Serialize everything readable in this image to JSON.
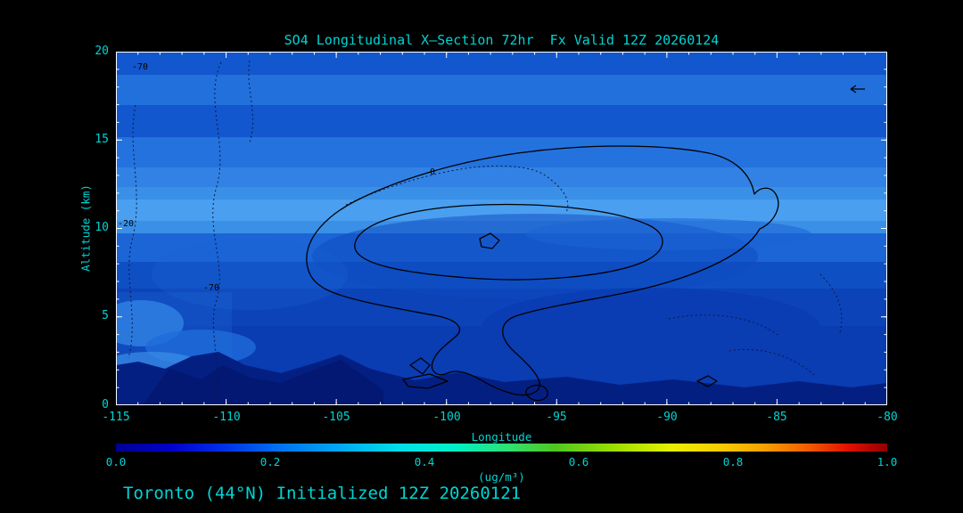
{
  "title": "SO4 Longitudinal X—Section 72hr  Fx Valid 12Z 20260124",
  "footer": "Toronto (44°N) Initialized 12Z 20260121",
  "axes": {
    "y_label": "Altitude (km)",
    "y_ticks": [
      "20",
      "15",
      "10",
      "5",
      "0"
    ],
    "x_label": "Longitude",
    "x_ticks": [
      "-115",
      "-110",
      "-105",
      "-100",
      "-95",
      "-90",
      "-85",
      "-80"
    ]
  },
  "colorbar": {
    "label": "(ug/m³)",
    "ticks": [
      "0.0",
      "0.2",
      "0.4",
      "0.6",
      "0.8",
      "1.0"
    ]
  },
  "contour_labels": {
    "zero": "0",
    "minus20": "-20",
    "minus70": "-70",
    "top_left": "-70"
  },
  "colors": {
    "background": "#000000",
    "text": "#00d4d4",
    "axis_frame": "#ffffff",
    "fill_base_dark_blue": "#0a3cb2",
    "fill_bright_band": "#4a9ff0",
    "terrain_navy": "#041f82",
    "contour_line": "#000000"
  },
  "chart_data": {
    "type": "heatmap",
    "title": "SO4 Longitudinal X—Section 72hr  Fx Valid 12Z 20260124",
    "xlabel": "Longitude",
    "ylabel": "Altitude (km)",
    "xlim": [
      -115,
      -80
    ],
    "ylim": [
      0,
      20
    ],
    "x_ticks": [
      -115,
      -110,
      -105,
      -100,
      -95,
      -90,
      -85,
      -80
    ],
    "y_ticks": [
      0,
      5,
      10,
      15,
      20
    ],
    "field": "SO4 concentration (ug/m³), longitudinal vertical cross-section at 44°N",
    "forecast": {
      "valid": "12Z 20260124",
      "initialized": "12Z 20260121",
      "lead_hr": 72,
      "site": "Toronto (44°N)"
    },
    "colorbar": {
      "label": "(ug/m³)",
      "range": [
        0.0,
        1.0
      ],
      "ticks": [
        0.0,
        0.2,
        0.4,
        0.6,
        0.8,
        1.0
      ],
      "palette": "rainbow: dark blue → blue → cyan → green → yellow → orange → red → dark red"
    },
    "value_note": "entire cross-section lies in the lowest color bands (≈0.00–0.10 ug/m³), rendered as layered shades of blue; lightest (highest) band near 12–13.5 km",
    "filled_bands_estimate": [
      {
        "altitude_km": [
          0,
          2
        ],
        "value_est": 0.005,
        "shade": "darkest navy (terrain silhouette / minimum)"
      },
      {
        "altitude_km": [
          2,
          8
        ],
        "value_est": 0.02,
        "shade": "dark blue"
      },
      {
        "altitude_km": [
          8,
          11
        ],
        "value_est": 0.03,
        "shade": "medium-dark blue with darker dome region -104…-85"
      },
      {
        "altitude_km": [
          11,
          13.5
        ],
        "value_est": 0.06,
        "shade": "lightest blue band (maximum)"
      },
      {
        "altitude_km": [
          13.5,
          16.5
        ],
        "value_est": 0.035,
        "shade": "medium blue"
      },
      {
        "altitude_km": [
          16.5,
          18.5
        ],
        "value_est": 0.045,
        "shade": "medium-light blue band"
      },
      {
        "altitude_km": [
          18.5,
          20
        ],
        "value_est": 0.035,
        "shade": "medium blue"
      }
    ],
    "contour_lines": {
      "solid_closed_unlabeled": [
        {
          "lon_extent": [
            -105,
            -84
          ],
          "alt_km_extent": [
            2,
            14.6
          ],
          "note": "outer contour; dome aloft with narrow funnel descending to low levels near -99"
        },
        {
          "lon_extent": [
            -104,
            -90
          ],
          "alt_km_extent": [
            8,
            11.5
          ],
          "note": "inner contour"
        },
        {
          "lon_extent": [
            -99.5,
            -98.5
          ],
          "alt_km_extent": [
            8.7,
            9.4
          ],
          "note": "innermost small contour"
        },
        {
          "lon_extent": [
            -102,
            -100.5
          ],
          "alt_km_extent": [
            0.8,
            2.5
          ],
          "note": "small low-level contours"
        }
      ],
      "dotted_labeled": [
        {
          "label": "0",
          "label_position": {
            "lon": -100.5,
            "alt_km": 13.4
          }
        },
        {
          "label": "-20",
          "label_position": {
            "lon": -114.7,
            "alt_km": 10.3
          }
        },
        {
          "label": "-70",
          "label_position": {
            "lon": -110.3,
            "alt_km": 6.7
          }
        },
        {
          "label": "-70",
          "label_position": {
            "lon": -113.9,
            "alt_km": 19.2
          }
        }
      ]
    }
  }
}
